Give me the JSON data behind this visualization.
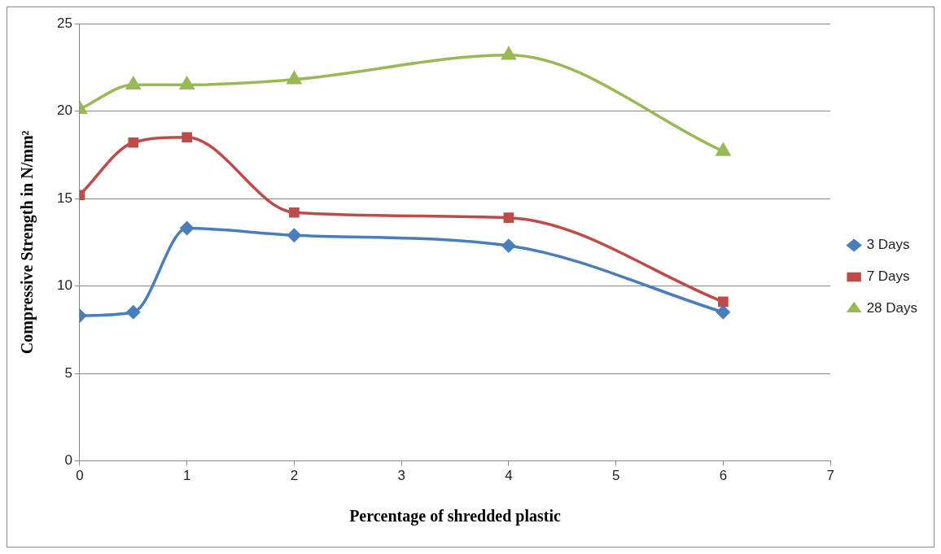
{
  "chart_data": {
    "type": "line",
    "xlabel": "Percentage of shredded plastic",
    "ylabel": "Compressive Strength in N/mm²",
    "x": [
      0,
      0.5,
      1,
      2,
      4,
      6
    ],
    "xlim": [
      0,
      7
    ],
    "xticks": [
      0,
      1,
      2,
      3,
      4,
      5,
      6,
      7
    ],
    "ylim": [
      0,
      25
    ],
    "yticks": [
      0,
      5,
      10,
      15,
      20,
      25
    ],
    "grid": "y",
    "legend": "right",
    "series": [
      {
        "name": "3 Days",
        "color": "#4a7ebb",
        "marker": "diamond",
        "values": [
          8.3,
          8.5,
          13.3,
          12.9,
          12.3,
          8.5
        ]
      },
      {
        "name": "7 Days",
        "color": "#be4b48",
        "marker": "square",
        "values": [
          15.2,
          18.2,
          18.5,
          14.2,
          13.9,
          9.1
        ]
      },
      {
        "name": "28 Days",
        "color": "#98b954",
        "marker": "triangle",
        "values": [
          20.1,
          21.5,
          21.5,
          21.8,
          23.2,
          17.7
        ]
      }
    ]
  }
}
